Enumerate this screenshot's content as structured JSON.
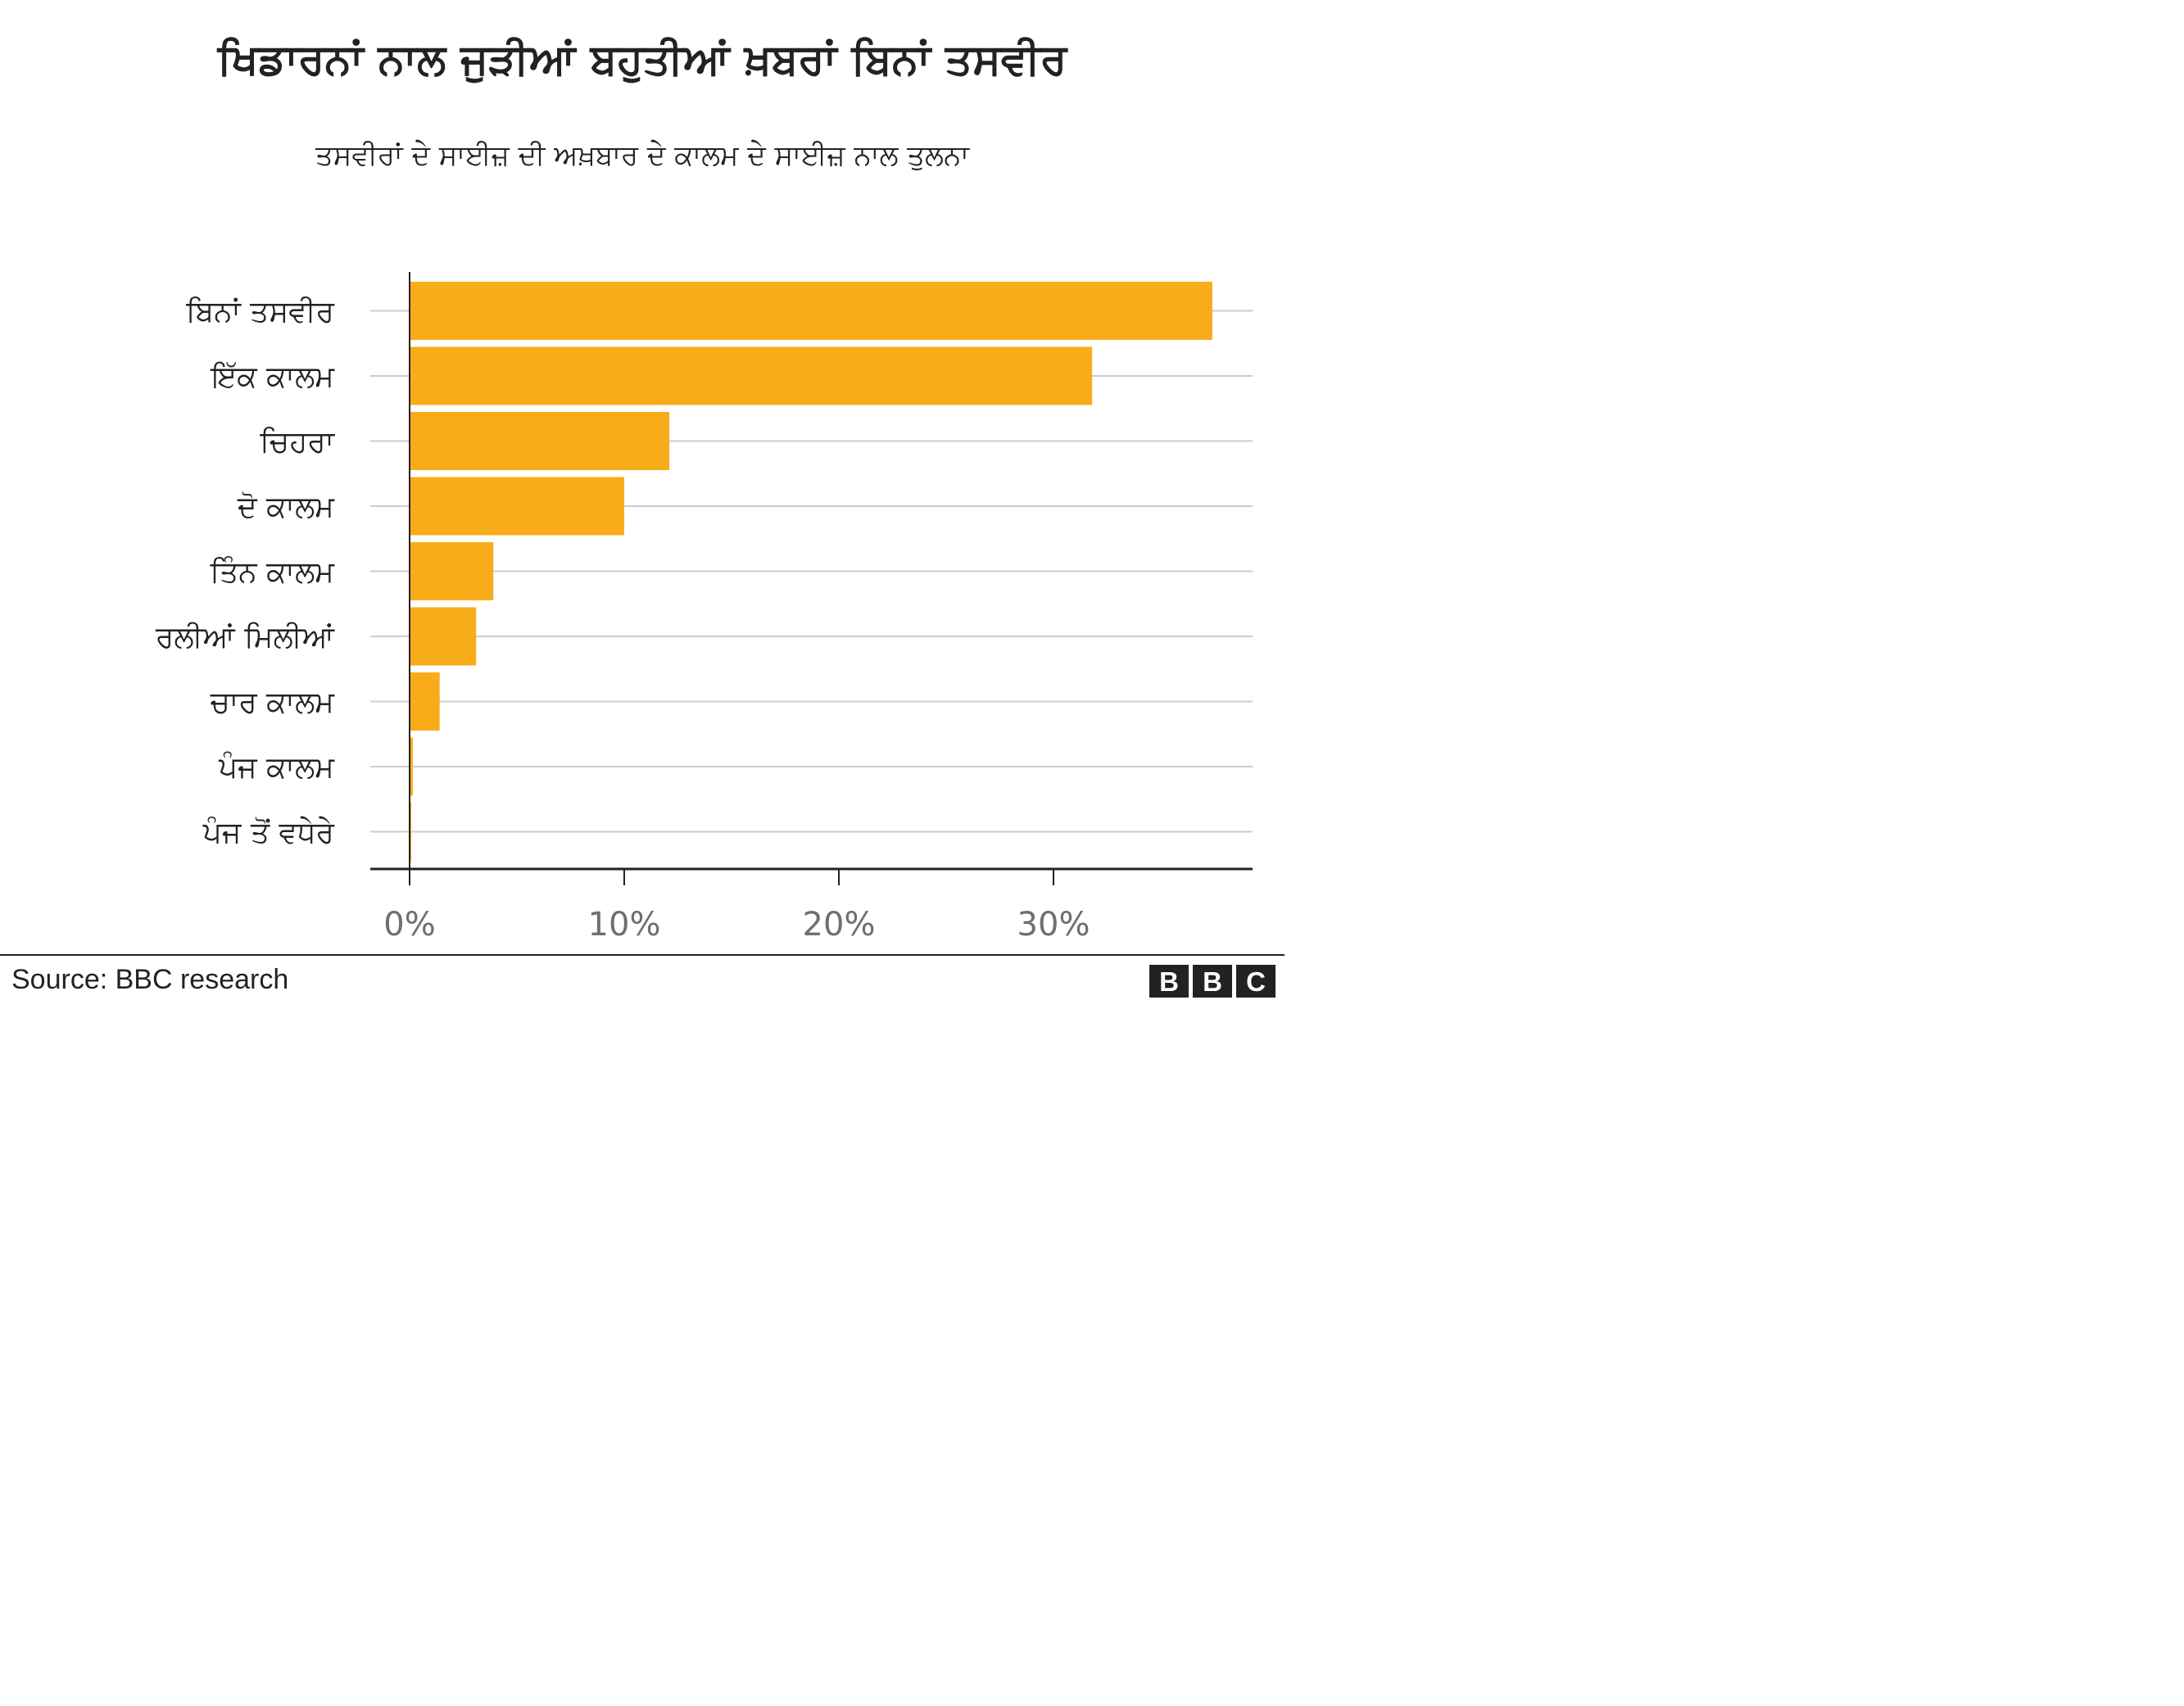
{
  "chart_data": {
    "type": "bar",
    "orientation": "horizontal",
    "title": "ਖਿਡਾਰਨਾਂ ਨਾਲ ਜੁੜੀਆਂ ਬਹੁਤੀਆਂ ਖ਼ਬਰਾਂ ਬਿਨਾਂ ਤਸਵੀਰ",
    "subtitle": "ਤਸਵੀਰਾਂ ਦੇ ਸਾਈਜ਼ ਦੀ ਅਖ਼ਬਾਰ ਦੇ ਕਾਲਮ ਦੇ ਸਾਈਜ਼ ਨਾਲ ਤੁਲਨਾ",
    "categories": [
      "ਬਿਨਾਂ ਤਸਵੀਰ",
      "ਇੱਕ ਕਾਲਮ",
      "ਚਿਹਰਾ",
      "ਦੋ ਕਾਲਮ",
      "ਤਿੰਨ ਕਾਲਮ",
      "ਰਲੀਆਂ ਮਿਲੀਆਂ",
      "ਚਾਰ ਕਾਲਮ",
      "ਪੰਜ ਕਾਲਮ",
      "ਪੰਜ ਤੋਂ ਵਧੇਰੇ"
    ],
    "values": [
      37.4,
      31.8,
      12.1,
      10.0,
      3.9,
      3.1,
      1.4,
      0.15,
      0.08
    ],
    "xlim": [
      0,
      40
    ],
    "xticks": [
      0,
      10,
      20,
      30
    ],
    "xtick_labels": [
      "0%",
      "10%",
      "20%",
      "30%"
    ],
    "xlabel": "",
    "ylabel": "",
    "grid": true,
    "bar_color": "#f8ac1a",
    "grid_color": "#cccccc",
    "axis_color": "#222222",
    "tick_label_color": "#6e6e73"
  },
  "footer": {
    "source": "Source: BBC research",
    "logo_letters": [
      "B",
      "B",
      "C"
    ]
  }
}
